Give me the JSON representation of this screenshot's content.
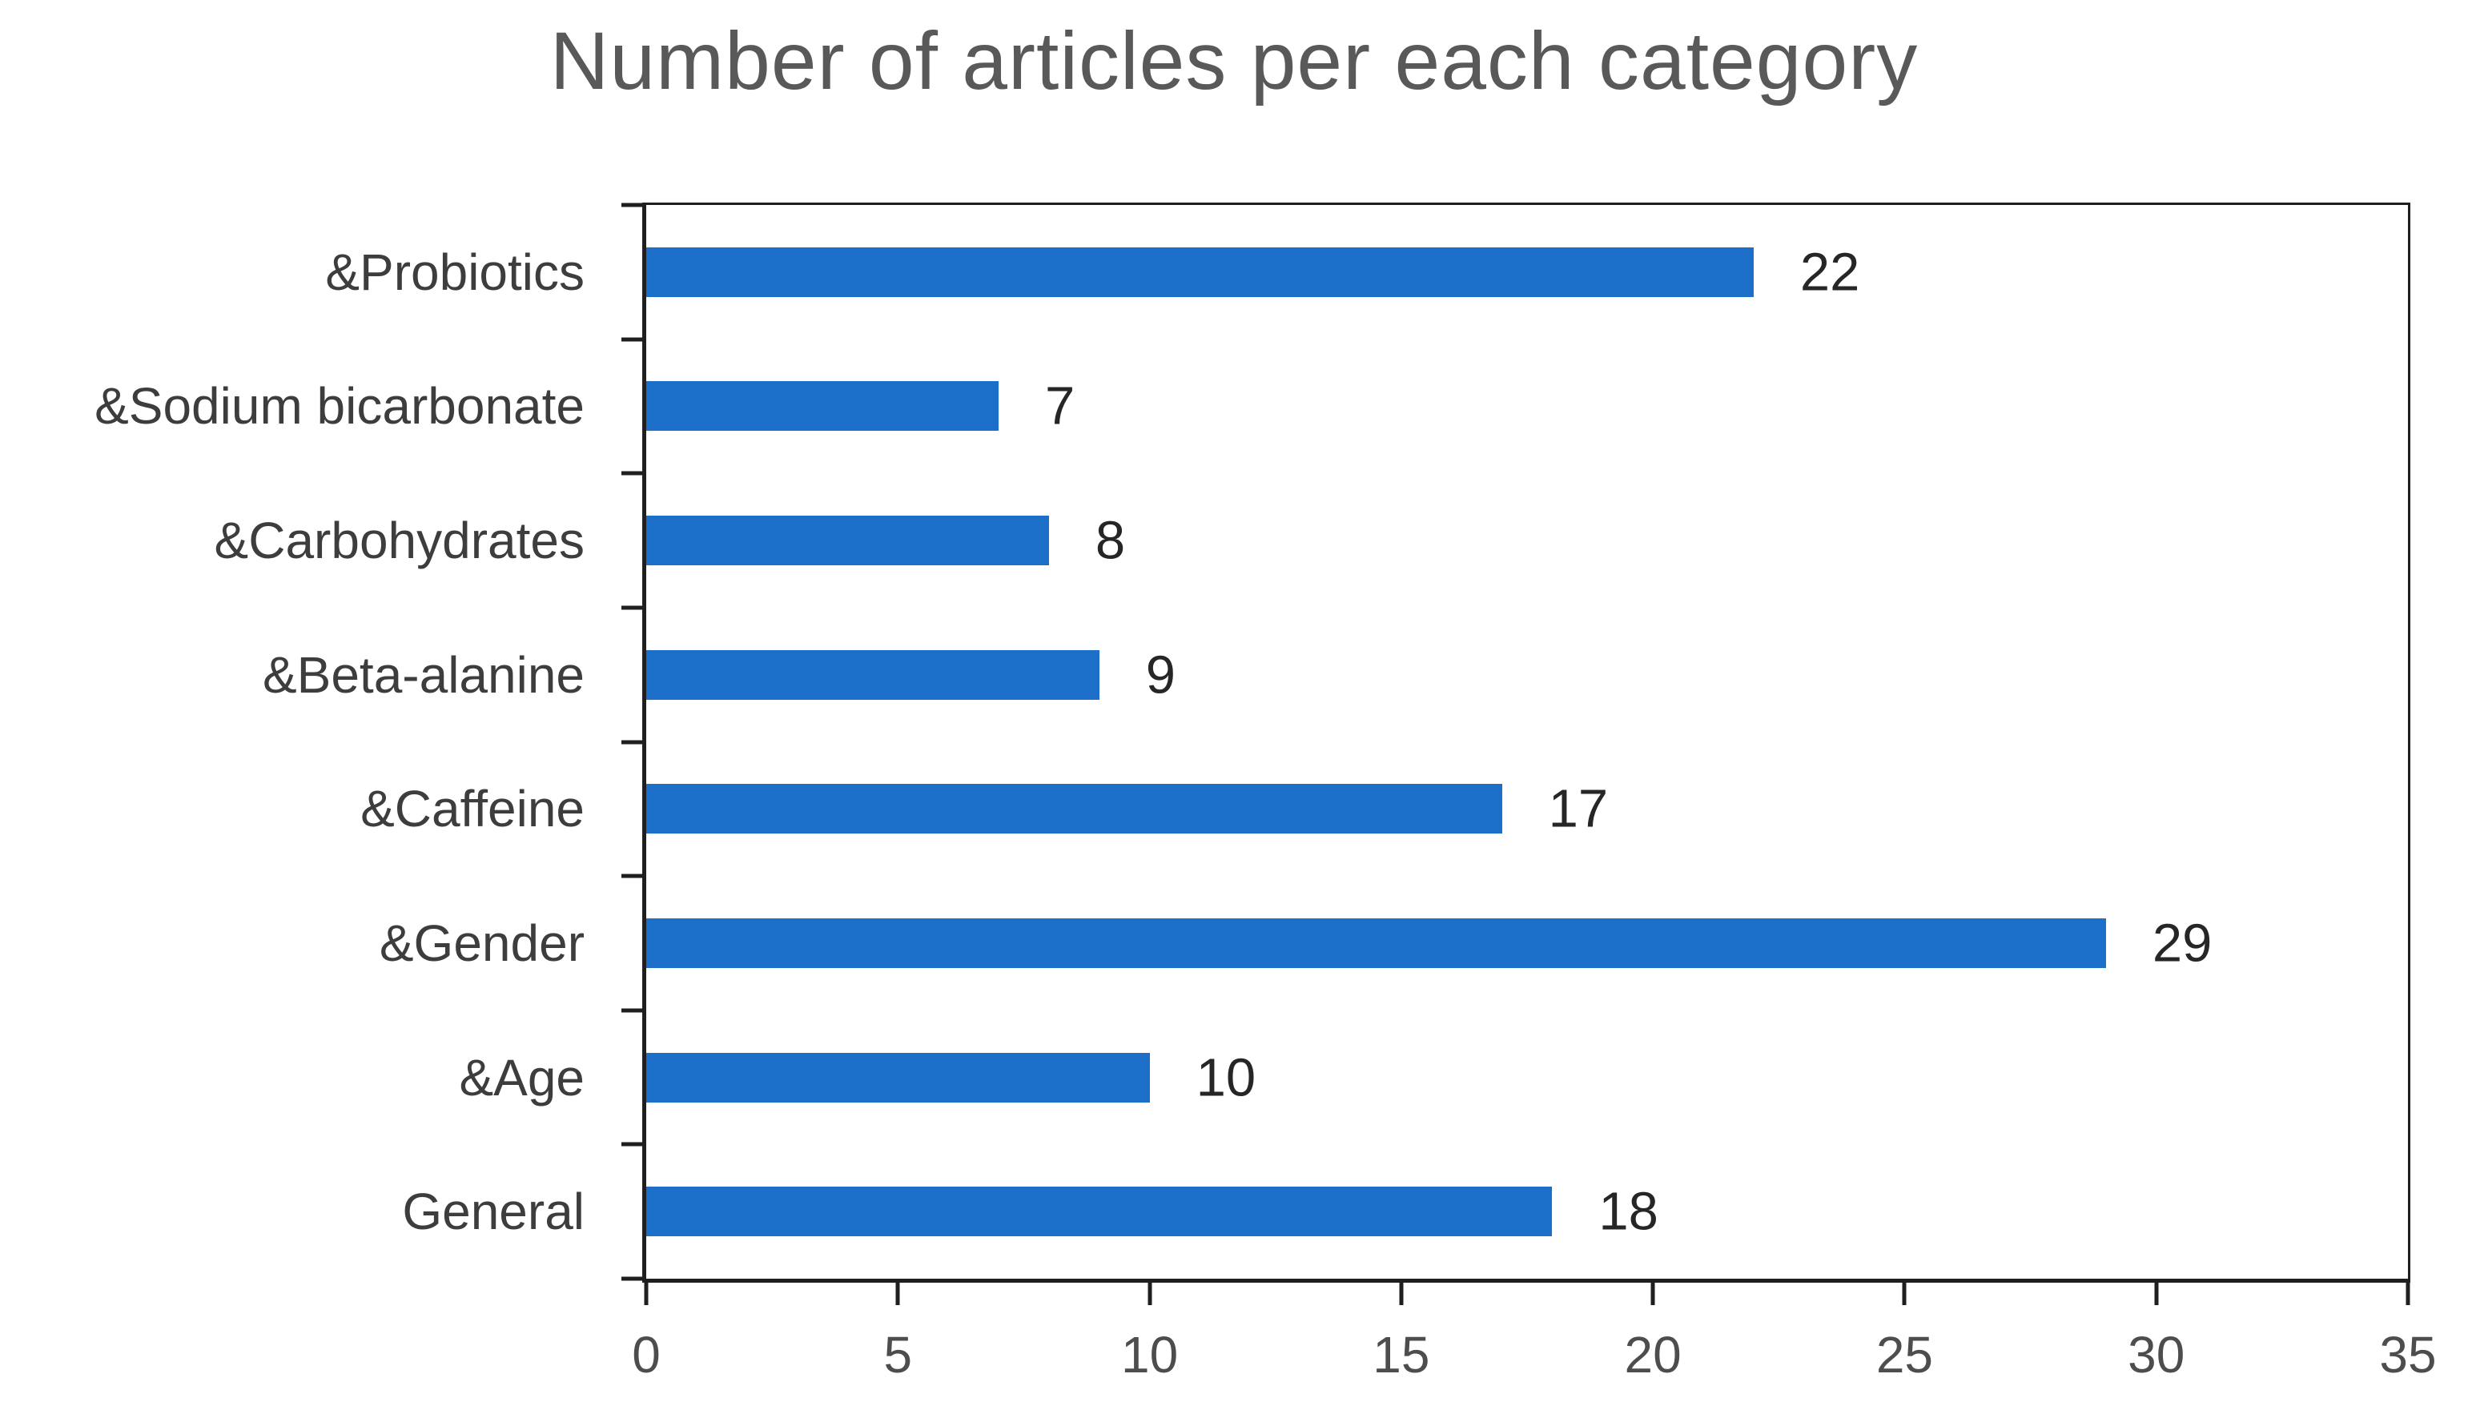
{
  "chart_data": {
    "type": "bar",
    "orientation": "horizontal",
    "title": "Number of articles per each category",
    "categories": [
      "&Probiotics",
      "&Sodium bicarbonate",
      "&Carbohydrates",
      "&Beta-alanine",
      "&Caffeine",
      "&Gender",
      "&Age",
      "General"
    ],
    "values": [
      22,
      7,
      8,
      9,
      17,
      29,
      10,
      18
    ],
    "xlabel": "",
    "ylabel": "",
    "xlim": [
      0,
      35
    ],
    "x_ticks": [
      0,
      5,
      10,
      15,
      20,
      25,
      30,
      35
    ],
    "grid": false,
    "legend": "none",
    "colors": {
      "bar": "#1b6fc8",
      "axis": "#1f1f1f",
      "title": "#595959",
      "category_label": "#3d3d3d",
      "value_label": "#262626",
      "tick_label": "#4d4d4d",
      "background": "#ffffff"
    }
  }
}
